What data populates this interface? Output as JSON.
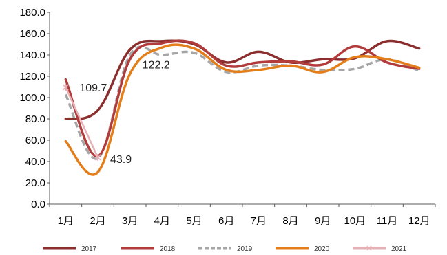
{
  "chart_data": {
    "type": "line",
    "title": "",
    "xlabel": "",
    "ylabel": "",
    "categories": [
      "1月",
      "2月",
      "3月",
      "4月",
      "5月",
      "6月",
      "7月",
      "8月",
      "9月",
      "10月",
      "11月",
      "12月"
    ],
    "ylim": [
      0,
      180
    ],
    "yticks": [
      "0.0",
      "20.0",
      "40.0",
      "60.0",
      "80.0",
      "100.0",
      "120.0",
      "140.0",
      "160.0",
      "180.0"
    ],
    "grid": false,
    "legend_position": "bottom",
    "series": [
      {
        "name": "2017",
        "color": "#8b2e2e",
        "dash": false,
        "marker": false,
        "values": [
          80,
          88,
          145,
          153,
          150,
          133,
          143,
          133,
          136,
          137,
          153,
          146
        ]
      },
      {
        "name": "2018",
        "color": "#b23b3b",
        "dash": false,
        "marker": false,
        "values": [
          117,
          45,
          136,
          151,
          151,
          130,
          133,
          134,
          131,
          148,
          133,
          127
        ]
      },
      {
        "name": "2019",
        "color": "#a6a6a6",
        "dash": true,
        "marker": false,
        "values": [
          103,
          43,
          140,
          140,
          142,
          124,
          130,
          130,
          126,
          127,
          136,
          125
        ]
      },
      {
        "name": "2020",
        "color": "#e47e1a",
        "dash": false,
        "marker": false,
        "values": [
          59,
          30,
          122.2,
          147,
          146,
          126,
          126,
          130,
          124,
          138,
          136,
          128
        ]
      },
      {
        "name": "2021",
        "color": "#e6b0b4",
        "dash": false,
        "marker": true,
        "values": [
          109.7,
          43.9,
          null,
          null,
          null,
          null,
          null,
          null,
          null,
          null,
          null,
          null
        ]
      }
    ],
    "annotations": [
      {
        "text": "109.7",
        "series": "2021",
        "index": 0
      },
      {
        "text": "43.9",
        "series": "2021",
        "index": 1
      },
      {
        "text": "122.2",
        "series": "2020",
        "index": 2
      }
    ]
  }
}
